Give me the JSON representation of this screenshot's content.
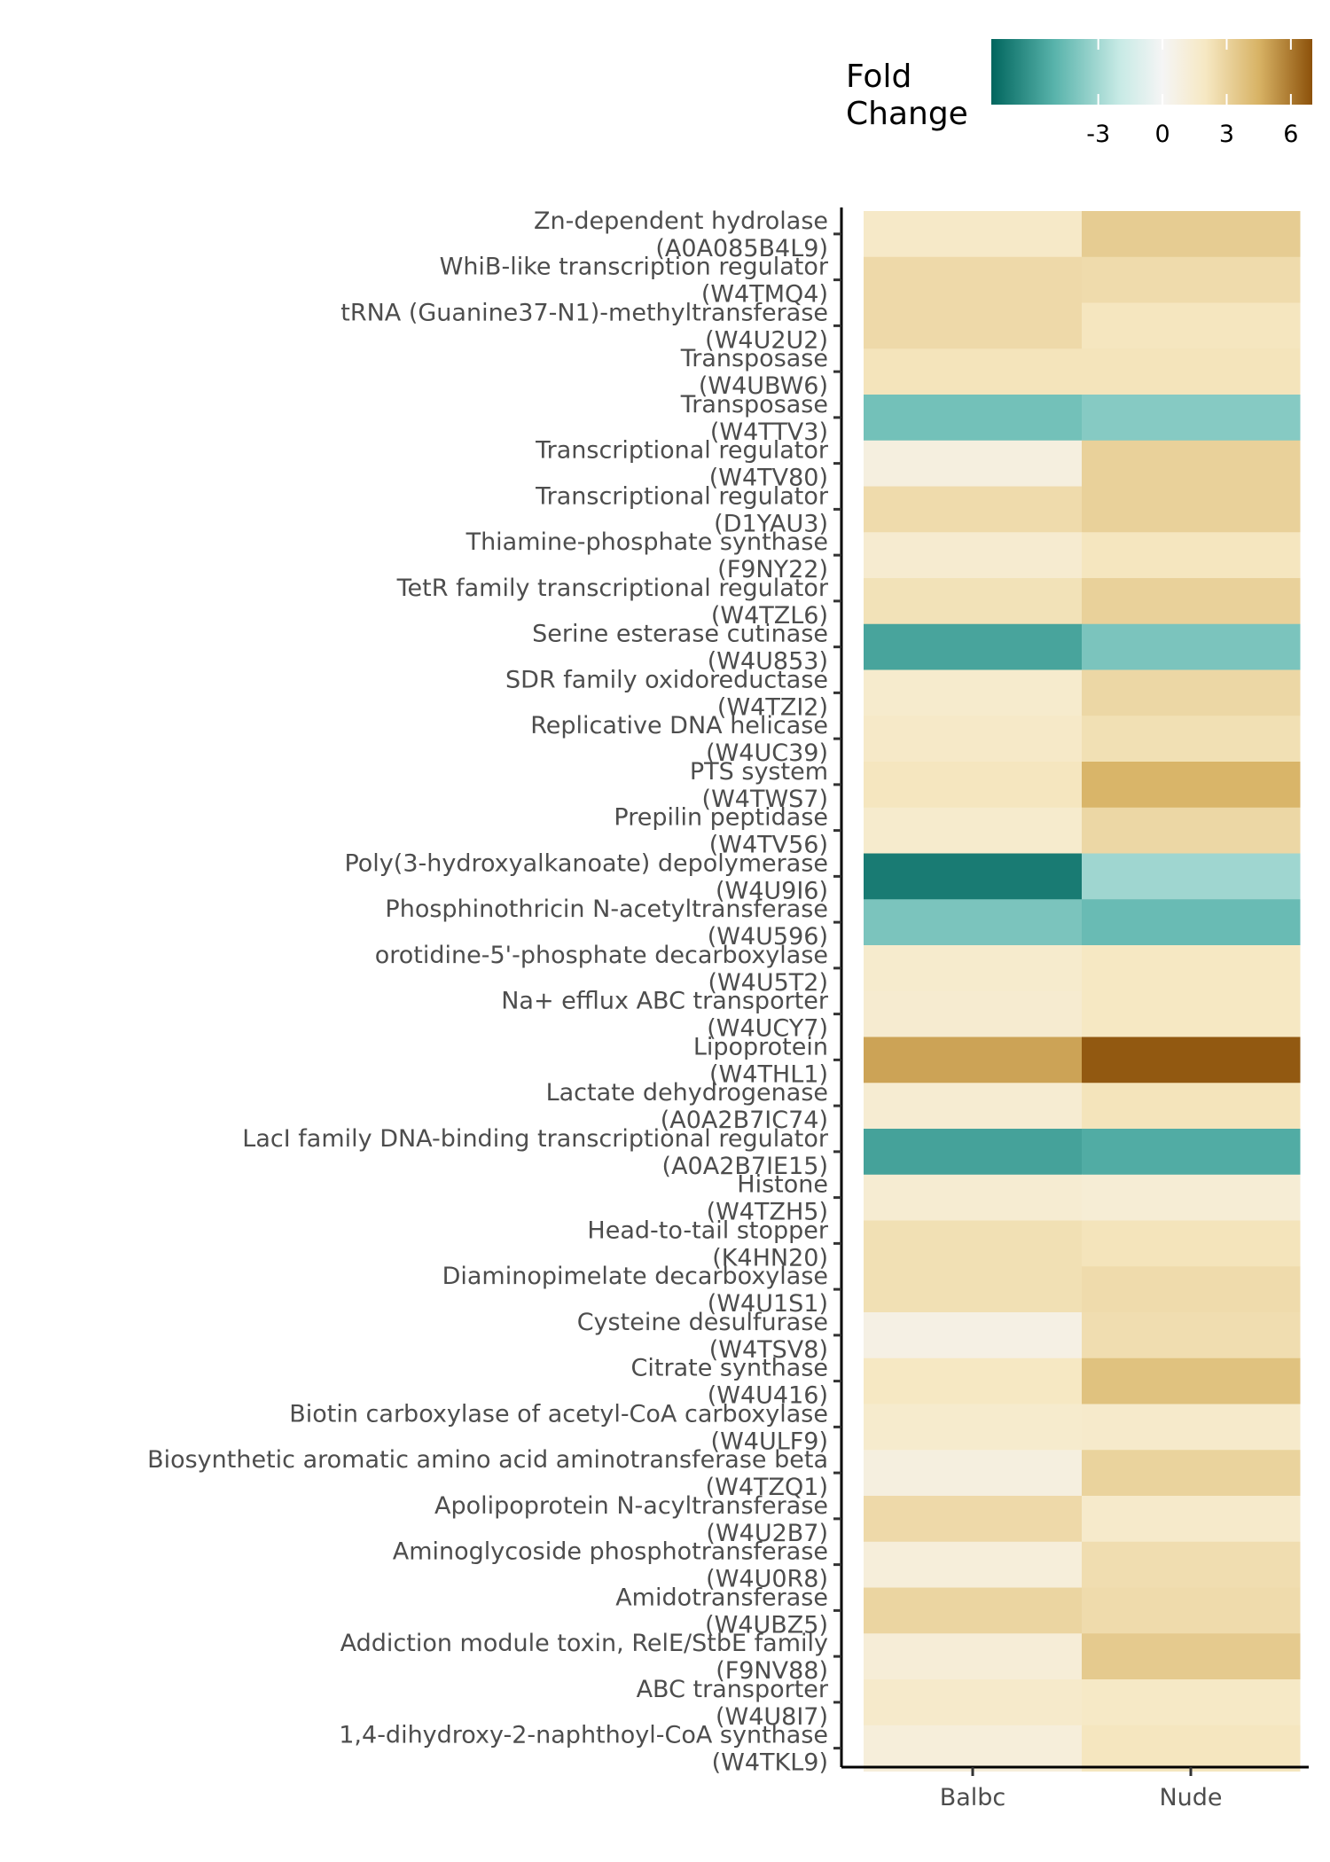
{
  "chart_data": {
    "type": "heatmap",
    "columns": [
      "Balbc",
      "Nude"
    ],
    "rows": [
      {
        "label": [
          "Zn-dependent hydrolase",
          "(A0A085B4L9)"
        ],
        "values": [
          1.8,
          3.3
        ]
      },
      {
        "label": [
          "WhiB-like transcription regulator",
          "(W4TMQ4)"
        ],
        "values": [
          2.7,
          2.6
        ]
      },
      {
        "label": [
          "tRNA (Guanine37-N1)-methyltransferase",
          "(W4U2U2)"
        ],
        "values": [
          2.7,
          2.1
        ]
      },
      {
        "label": [
          "Transposase",
          "(W4UBW6)"
        ],
        "values": [
          2.2,
          2.2
        ]
      },
      {
        "label": [
          "Transposase",
          "(W4TTV3)"
        ],
        "values": [
          -4.3,
          -3.8
        ]
      },
      {
        "label": [
          "Transcriptional regulator",
          "(W4TV80)"
        ],
        "values": [
          0.9,
          3.1
        ]
      },
      {
        "label": [
          "Transcriptional regulator",
          "(D1YAU3)"
        ],
        "values": [
          2.6,
          3.1
        ]
      },
      {
        "label": [
          "Thiamine-phosphate synthase",
          "(F9NY22)"
        ],
        "values": [
          1.5,
          2.1
        ]
      },
      {
        "label": [
          "TetR family transcriptional regulator",
          "(W4TZL6)"
        ],
        "values": [
          2.3,
          3.1
        ]
      },
      {
        "label": [
          "Serine esterase cutinase",
          "(W4U853)"
        ],
        "values": [
          -5.6,
          -4.1
        ]
      },
      {
        "label": [
          "SDR family oxidoreductase",
          "(W4TZI2)"
        ],
        "values": [
          1.6,
          2.8
        ]
      },
      {
        "label": [
          "Replicative DNA helicase",
          "(W4UC39)"
        ],
        "values": [
          1.8,
          2.4
        ]
      },
      {
        "label": [
          "PTS system",
          "(W4TWS7)"
        ],
        "values": [
          2.1,
          4.4
        ]
      },
      {
        "label": [
          "Prepilin peptidase",
          "(W4TV56)"
        ],
        "values": [
          1.6,
          2.8
        ]
      },
      {
        "label": [
          "Poly(3-hydroxyalkanoate) depolymerase",
          "(W4U9I6)"
        ],
        "values": [
          -7.2,
          -3.1
        ]
      },
      {
        "label": [
          "Phosphinothricin N-acetyltransferase",
          "(W4U596)"
        ],
        "values": [
          -4.1,
          -4.6
        ]
      },
      {
        "label": [
          "orotidine-5'-phosphate decarboxylase",
          "(W4U5T2)"
        ],
        "values": [
          1.6,
          2.0
        ]
      },
      {
        "label": [
          "Na+ efflux ABC transporter",
          "(W4UCY7)"
        ],
        "values": [
          1.5,
          2.0
        ]
      },
      {
        "label": [
          "Lipoprotein",
          "(W4THL1)"
        ],
        "values": [
          4.9,
          6.8
        ]
      },
      {
        "label": [
          "Lactate dehydrogenase",
          "(A0A2B7IC74)"
        ],
        "values": [
          1.4,
          2.2
        ]
      },
      {
        "label": [
          "LacI family DNA-binding transcriptional regulator",
          "(A0A2B7IE15)"
        ],
        "values": [
          -5.7,
          -5.3
        ]
      },
      {
        "label": [
          "Histone",
          "(W4TZH5)"
        ],
        "values": [
          1.4,
          1.3
        ]
      },
      {
        "label": [
          "Head-to-tail stopper",
          "(K4HN20)"
        ],
        "values": [
          2.4,
          2.2
        ]
      },
      {
        "label": [
          "Diaminopimelate decarboxylase",
          "(W4U1S1)"
        ],
        "values": [
          2.4,
          2.6
        ]
      },
      {
        "label": [
          "Cysteine desulfurase",
          "(W4TSV8)"
        ],
        "values": [
          0.7,
          2.5
        ]
      },
      {
        "label": [
          "Citrate synthase",
          "(W4U416)"
        ],
        "values": [
          2.0,
          3.8
        ]
      },
      {
        "label": [
          "Biotin carboxylase of acetyl-CoA carboxylase",
          "(W4ULF9)"
        ],
        "values": [
          1.6,
          1.7
        ]
      },
      {
        "label": [
          "Biosynthetic aromatic amino acid aminotransferase beta",
          "(W4TZQ1)"
        ],
        "values": [
          0.9,
          3.0
        ]
      },
      {
        "label": [
          "Apolipoprotein N-acyltransferase",
          "(W4U2B7)"
        ],
        "values": [
          2.7,
          1.7
        ]
      },
      {
        "label": [
          "Aminoglycoside phosphotransferase",
          "(W4U0R8)"
        ],
        "values": [
          1.1,
          2.5
        ]
      },
      {
        "label": [
          "Amidotransferase",
          "(W4UBZ5)"
        ],
        "values": [
          2.9,
          2.6
        ]
      },
      {
        "label": [
          "Addiction module toxin, RelE/StbE family",
          "(F9NV88)"
        ],
        "values": [
          1.2,
          3.4
        ]
      },
      {
        "label": [
          "ABC transporter",
          "(W4U8I7)"
        ],
        "values": [
          1.7,
          1.9
        ]
      },
      {
        "label": [
          "1,4-dihydroxy-2-naphthoyl-CoA synthase",
          "(W4TKL9)"
        ],
        "values": [
          1.1,
          2.1
        ]
      }
    ],
    "legend": {
      "title": [
        "Fold",
        "Change"
      ],
      "placement": "top-right",
      "range": [
        -8,
        7
      ],
      "ticks": [
        -3,
        0,
        3,
        6
      ],
      "colors": [
        {
          "value": -8,
          "color": "#01665e"
        },
        {
          "value": -5,
          "color": "#5ab4ac"
        },
        {
          "value": -2,
          "color": "#c7eae5"
        },
        {
          "value": 0,
          "color": "#f5f5f5"
        },
        {
          "value": 2,
          "color": "#f6e8c3"
        },
        {
          "value": 4.5,
          "color": "#d8b365"
        },
        {
          "value": 7,
          "color": "#8c510a"
        }
      ]
    },
    "grid": false
  }
}
